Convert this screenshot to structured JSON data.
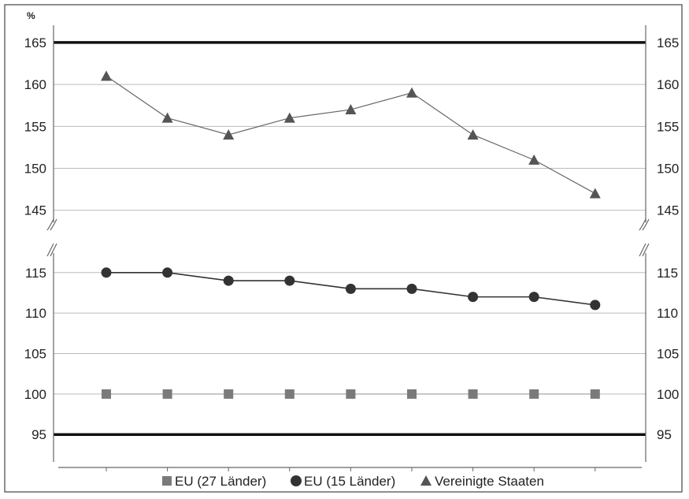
{
  "chart_data": {
    "type": "line",
    "ylabel": "%",
    "broken_axis": true,
    "upper_ylim": [
      143,
      168
    ],
    "lower_ylim": [
      92,
      118
    ],
    "upper_ticks": [
      "165",
      "160",
      "155",
      "150",
      "145"
    ],
    "lower_ticks": [
      "115",
      "110",
      "105",
      "100",
      "95"
    ],
    "reference_lines": [
      165,
      95
    ],
    "x": [
      1,
      2,
      3,
      4,
      5,
      6,
      7,
      8,
      9
    ],
    "series": [
      {
        "name": "EU (27 Länder)",
        "marker": "square",
        "color": "#7a7a7a",
        "values": [
          100,
          100,
          100,
          100,
          100,
          100,
          100,
          100,
          100
        ]
      },
      {
        "name": "EU (15 Länder)",
        "marker": "circle",
        "color": "#333333",
        "values": [
          115,
          115,
          114,
          114,
          113,
          113,
          112,
          112,
          111
        ]
      },
      {
        "name": "Vereinigte Staaten",
        "marker": "triangle",
        "color": "#555555",
        "values": [
          161,
          156,
          154,
          156,
          157,
          159,
          154,
          151,
          147
        ]
      }
    ],
    "legend_position": "bottom",
    "grid": true
  }
}
